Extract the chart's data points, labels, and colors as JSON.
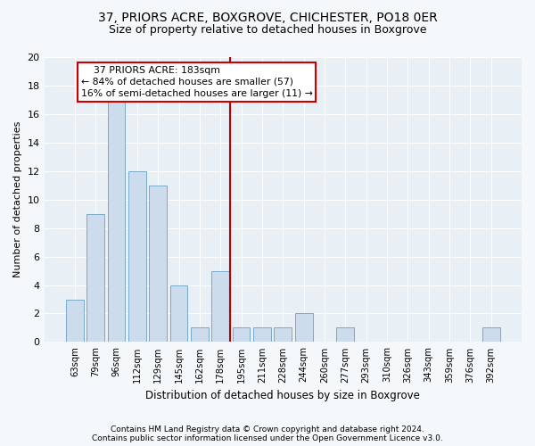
{
  "title1": "37, PRIORS ACRE, BOXGROVE, CHICHESTER, PO18 0ER",
  "title2": "Size of property relative to detached houses in Boxgrove",
  "xlabel": "Distribution of detached houses by size in Boxgrove",
  "ylabel": "Number of detached properties",
  "categories": [
    "63sqm",
    "79sqm",
    "96sqm",
    "112sqm",
    "129sqm",
    "145sqm",
    "162sqm",
    "178sqm",
    "195sqm",
    "211sqm",
    "228sqm",
    "244sqm",
    "260sqm",
    "277sqm",
    "293sqm",
    "310sqm",
    "326sqm",
    "343sqm",
    "359sqm",
    "376sqm",
    "392sqm"
  ],
  "values": [
    3,
    9,
    17,
    12,
    11,
    4,
    1,
    5,
    1,
    1,
    1,
    2,
    0,
    1,
    0,
    0,
    0,
    0,
    0,
    0,
    1
  ],
  "bar_color": "#ccdcec",
  "bar_edge_color": "#7aaac8",
  "vline_x_index": 7.45,
  "annotation_line1": "    37 PRIORS ACRE: 183sqm",
  "annotation_line2": "← 84% of detached houses are smaller (57)",
  "annotation_line3": "16% of semi-detached houses are larger (11) →",
  "annotation_box_facecolor": "#ffffff",
  "annotation_box_edgecolor": "#cc0000",
  "vline_color": "#bb0000",
  "bg_color": "#f5f8fb",
  "plot_bg_color": "#e8eff5",
  "grid_color": "#ffffff",
  "ylim": [
    0,
    20
  ],
  "yticks": [
    0,
    2,
    4,
    6,
    8,
    10,
    12,
    14,
    16,
    18,
    20
  ],
  "title1_fontsize": 10,
  "title2_fontsize": 9,
  "footer1": "Contains HM Land Registry data © Crown copyright and database right 2024.",
  "footer2": "Contains public sector information licensed under the Open Government Licence v3.0.",
  "footer_fontsize": 6.5
}
